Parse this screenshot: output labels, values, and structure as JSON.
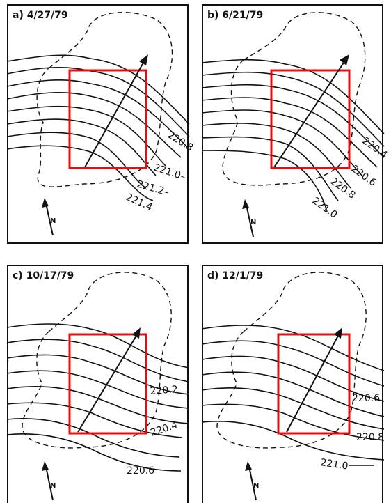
{
  "panels": [
    {
      "title": "a) 4/27/79",
      "north_label": "N",
      "contour_labels": [
        "220.8",
        "221.0–",
        "221.2–",
        "221.4"
      ]
    },
    {
      "title": "b) 6/21/79",
      "north_label": "N",
      "contour_labels": [
        "220.4",
        "220.6",
        "220.8",
        "221.0"
      ]
    },
    {
      "title": "c) 10/17/79",
      "north_label": "N",
      "contour_labels": [
        "220.2",
        "220.4",
        "220.6"
      ]
    },
    {
      "title": "d) 12/1/79",
      "north_label": "N",
      "contour_labels": [
        "220.6",
        "220.8",
        "221.0"
      ]
    }
  ],
  "colors": {
    "highlight_box": "#e01010",
    "ink": "#111111"
  }
}
